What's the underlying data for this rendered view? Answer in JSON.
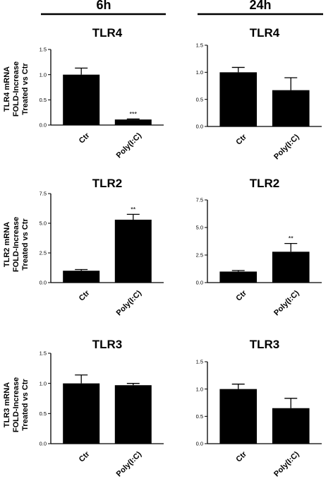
{
  "columns": [
    "6h",
    "24h"
  ],
  "ylabels": [
    [
      "TLR4 mRNA",
      "FOLD-Increase",
      "Treated vs Ctr"
    ],
    [
      "TLR2 mRNA",
      "FOLD-Increase",
      "Treated vs Ctr"
    ],
    [
      "TLR3 mRNA",
      "FOLD-Increase",
      "Treated vs Ctr"
    ]
  ],
  "chart_data": [
    {
      "type": "bar",
      "title": "TLR4",
      "column": "6h",
      "categories": [
        "Ctr",
        "Poly(I:C)"
      ],
      "values": [
        1.0,
        0.11
      ],
      "errors": [
        0.13,
        0.01
      ],
      "significance": [
        "",
        "***"
      ],
      "ylim": [
        0,
        1.5
      ],
      "yticks": [
        "0.0",
        "0.5",
        "1.0",
        "1.5"
      ]
    },
    {
      "type": "bar",
      "title": "TLR4",
      "column": "24h",
      "categories": [
        "Ctr",
        "Poly(I:C)"
      ],
      "values": [
        1.0,
        0.67
      ],
      "errors": [
        0.09,
        0.23
      ],
      "significance": [
        "",
        ""
      ],
      "ylim": [
        0,
        1.5
      ],
      "yticks": [
        "0.0",
        "0.5",
        "1.0",
        "1.5"
      ]
    },
    {
      "type": "bar",
      "title": "TLR2",
      "column": "6h",
      "categories": [
        "Ctr",
        "Poly(I:C)"
      ],
      "values": [
        1.0,
        5.3
      ],
      "errors": [
        0.1,
        0.45
      ],
      "significance": [
        "",
        "**"
      ],
      "ylim": [
        0,
        7.5
      ],
      "yticks": [
        "0.0",
        "2.5",
        "5.0",
        "7.5"
      ]
    },
    {
      "type": "bar",
      "title": "TLR2",
      "column": "24h",
      "categories": [
        "Ctr",
        "Poly(I:C)"
      ],
      "values": [
        1.0,
        2.8
      ],
      "errors": [
        0.1,
        0.75
      ],
      "significance": [
        "",
        "**"
      ],
      "ylim": [
        0,
        7.5
      ],
      "yticks": [
        "0.0",
        "2.5",
        "5.0",
        "7.5"
      ]
    },
    {
      "type": "bar",
      "title": "TLR3",
      "column": "6h",
      "categories": [
        "Ctr",
        "Poly(I:C)"
      ],
      "values": [
        1.0,
        0.97
      ],
      "errors": [
        0.14,
        0.03
      ],
      "significance": [
        "",
        ""
      ],
      "ylim": [
        0,
        1.5
      ],
      "yticks": [
        "0.0",
        "0.5",
        "1.0",
        "1.5"
      ]
    },
    {
      "type": "bar",
      "title": "TLR3",
      "column": "24h",
      "categories": [
        "Ctr",
        "Poly(I:C)"
      ],
      "values": [
        1.0,
        0.65
      ],
      "errors": [
        0.09,
        0.18
      ],
      "significance": [
        "",
        ""
      ],
      "ylim": [
        0,
        1.5
      ],
      "yticks": [
        "0.0",
        "0.5",
        "1.0",
        "1.5"
      ]
    }
  ]
}
